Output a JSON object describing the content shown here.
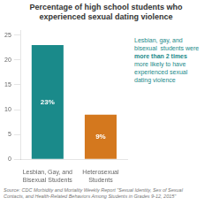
{
  "chart_data": {
    "type": "bar",
    "title": "Percentage of high school students who\nexperienced sexual dating violence",
    "categories": [
      "Lesbian, Gay, and\nBisexual Students",
      "Heterosexual\nStudents"
    ],
    "values": [
      23,
      9
    ],
    "value_labels": [
      "23%",
      "9%"
    ],
    "data_labels": true,
    "colors": [
      "#1a8a8a",
      "#d4781e"
    ],
    "ylim": [
      0,
      26
    ],
    "yticks": [
      0,
      5,
      10,
      15,
      20,
      25
    ],
    "grid": false,
    "annotations": [
      "Lesbian, gay, and",
      "bisexual  students were",
      "more than 2 times",
      "more likely to have",
      "experienced sexual",
      "dating violence"
    ],
    "source": "Source: CDC Morbidity and Mortality Weekly Report \"Sexual Identity, Sex of Sexual\nContacts, and Health-Related Behaviors Among Students in Grades 9-12, 2015\""
  }
}
